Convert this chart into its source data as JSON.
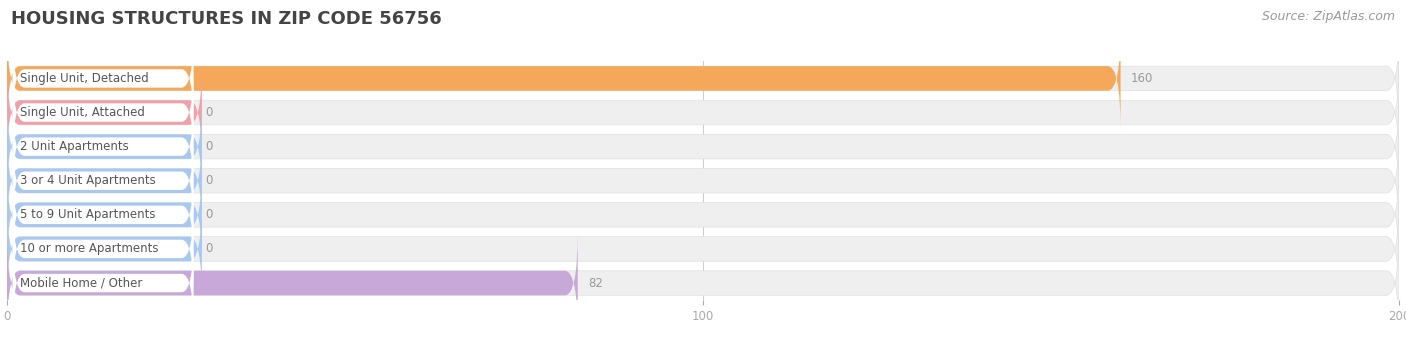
{
  "title": "HOUSING STRUCTURES IN ZIP CODE 56756",
  "source": "Source: ZipAtlas.com",
  "categories": [
    "Single Unit, Detached",
    "Single Unit, Attached",
    "2 Unit Apartments",
    "3 or 4 Unit Apartments",
    "5 to 9 Unit Apartments",
    "10 or more Apartments",
    "Mobile Home / Other"
  ],
  "values": [
    160,
    0,
    0,
    0,
    0,
    0,
    82
  ],
  "bar_colors": [
    "#f5a85a",
    "#f0a0a8",
    "#a8c8f0",
    "#a8c8f0",
    "#a8c8f0",
    "#a8c8f0",
    "#c8a8d8"
  ],
  "bg_row_color": "#efefef",
  "bg_row_border": "#e0e0e0",
  "label_pill_color": "#ffffff",
  "xlim": [
    0,
    200
  ],
  "xticks": [
    0,
    100,
    200
  ],
  "bar_height": 0.72,
  "background_color": "#ffffff",
  "title_fontsize": 13,
  "label_fontsize": 8.5,
  "value_fontsize": 8.5,
  "source_fontsize": 9,
  "value_color_inside": "#ffffff",
  "value_color_outside": "#999999",
  "label_text_color": "#555555",
  "title_color": "#444444",
  "source_color": "#999999"
}
